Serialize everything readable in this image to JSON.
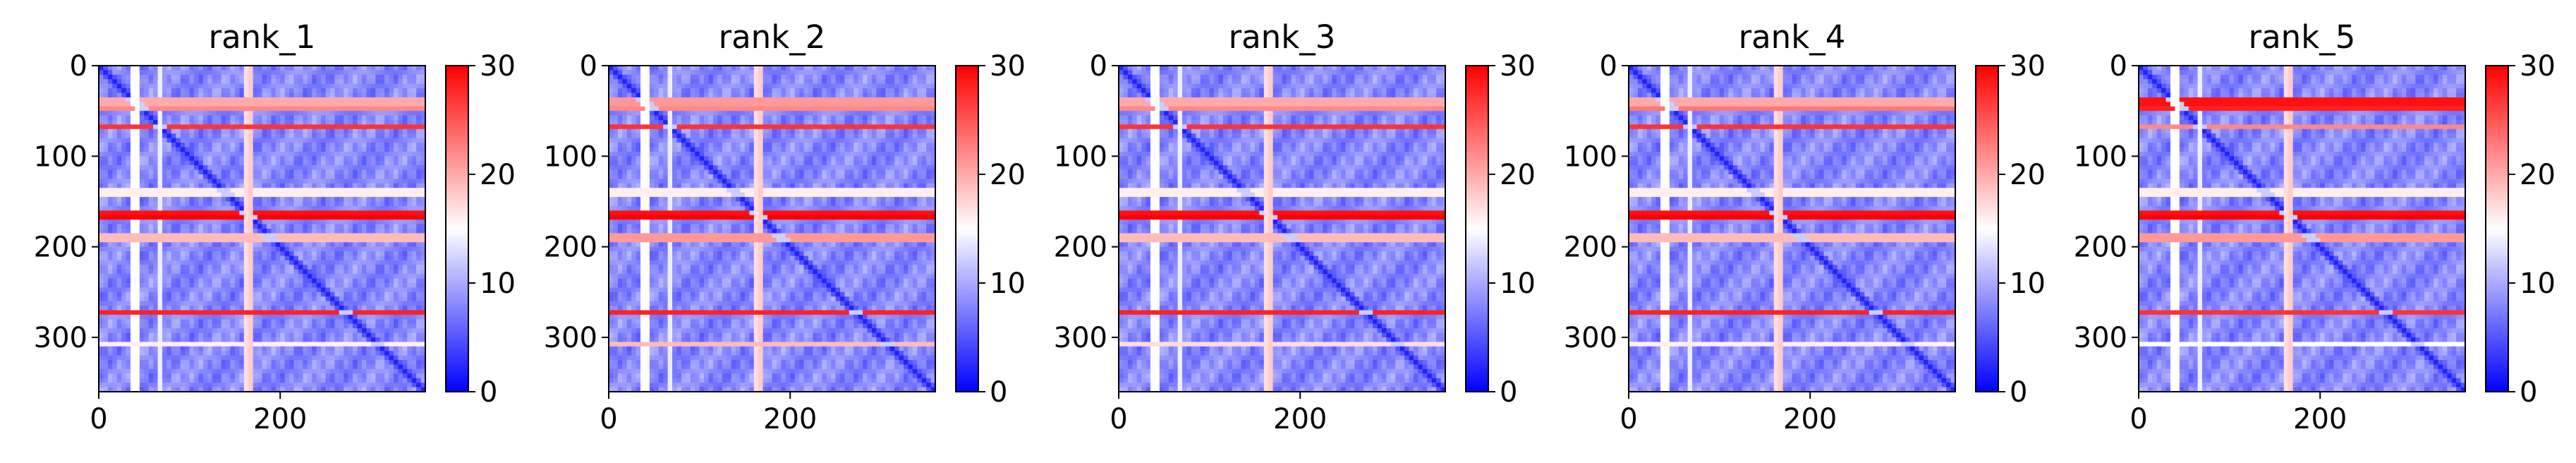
{
  "chart_data": [
    {
      "type": "heatmap",
      "title": "rank_1",
      "xlim": [
        0,
        360
      ],
      "ylim": [
        0,
        360
      ],
      "xticks": [
        0,
        200
      ],
      "yticks": [
        0,
        100,
        200,
        300
      ],
      "colorbar": {
        "cmap": "bwr",
        "min": 0,
        "max": 30,
        "ticks": [
          0,
          10,
          20,
          30
        ]
      },
      "features": {
        "base_value": 8,
        "diagonal_value": 2,
        "bright_rows": [
          {
            "y": 40,
            "value": 20
          },
          {
            "y": 47,
            "value": 22
          },
          {
            "y": 66,
            "value": 27
          },
          {
            "y": 140,
            "value": 16
          },
          {
            "y": 162,
            "value": 29
          },
          {
            "y": 168,
            "value": 30
          },
          {
            "y": 190,
            "value": 19
          },
          {
            "y": 274,
            "value": 28
          },
          {
            "y": 306,
            "value": 16
          }
        ],
        "bright_cols": [
          {
            "x": 40,
            "value": 15
          },
          {
            "x": 66,
            "value": 14
          },
          {
            "x": 163,
            "value": 17
          },
          {
            "x": 168,
            "value": 18
          }
        ]
      }
    },
    {
      "type": "heatmap",
      "title": "rank_2",
      "xlim": [
        0,
        360
      ],
      "ylim": [
        0,
        360
      ],
      "xticks": [
        0,
        200
      ],
      "yticks": [
        0,
        100,
        200,
        300
      ],
      "colorbar": {
        "cmap": "bwr",
        "min": 0,
        "max": 30,
        "ticks": [
          0,
          10,
          20,
          30
        ]
      },
      "features": {
        "base_value": 8,
        "diagonal_value": 2,
        "bright_rows": [
          {
            "y": 40,
            "value": 21
          },
          {
            "y": 47,
            "value": 22
          },
          {
            "y": 66,
            "value": 27
          },
          {
            "y": 140,
            "value": 16
          },
          {
            "y": 162,
            "value": 29
          },
          {
            "y": 168,
            "value": 30
          },
          {
            "y": 190,
            "value": 21
          },
          {
            "y": 274,
            "value": 28
          },
          {
            "y": 306,
            "value": 19
          }
        ],
        "bright_cols": [
          {
            "x": 40,
            "value": 15
          },
          {
            "x": 66,
            "value": 14
          },
          {
            "x": 163,
            "value": 17
          },
          {
            "x": 168,
            "value": 18
          }
        ]
      }
    },
    {
      "type": "heatmap",
      "title": "rank_3",
      "xlim": [
        0,
        360
      ],
      "ylim": [
        0,
        360
      ],
      "xticks": [
        0,
        200
      ],
      "yticks": [
        0,
        100,
        200,
        300
      ],
      "colorbar": {
        "cmap": "bwr",
        "min": 0,
        "max": 30,
        "ticks": [
          0,
          10,
          20,
          30
        ]
      },
      "features": {
        "base_value": 8,
        "diagonal_value": 2,
        "bright_rows": [
          {
            "y": 40,
            "value": 20
          },
          {
            "y": 47,
            "value": 22
          },
          {
            "y": 66,
            "value": 27
          },
          {
            "y": 140,
            "value": 16
          },
          {
            "y": 162,
            "value": 29
          },
          {
            "y": 168,
            "value": 30
          },
          {
            "y": 190,
            "value": 19
          },
          {
            "y": 274,
            "value": 28
          },
          {
            "y": 306,
            "value": 17
          }
        ],
        "bright_cols": [
          {
            "x": 40,
            "value": 15
          },
          {
            "x": 66,
            "value": 14
          },
          {
            "x": 163,
            "value": 17
          },
          {
            "x": 168,
            "value": 18
          }
        ]
      }
    },
    {
      "type": "heatmap",
      "title": "rank_4",
      "xlim": [
        0,
        360
      ],
      "ylim": [
        0,
        360
      ],
      "xticks": [
        0,
        200
      ],
      "yticks": [
        0,
        100,
        200,
        300
      ],
      "colorbar": {
        "cmap": "bwr",
        "min": 0,
        "max": 30,
        "ticks": [
          0,
          10,
          20,
          30
        ]
      },
      "features": {
        "base_value": 8,
        "diagonal_value": 2,
        "bright_rows": [
          {
            "y": 40,
            "value": 20
          },
          {
            "y": 47,
            "value": 23
          },
          {
            "y": 66,
            "value": 27
          },
          {
            "y": 140,
            "value": 16
          },
          {
            "y": 162,
            "value": 29
          },
          {
            "y": 168,
            "value": 30
          },
          {
            "y": 190,
            "value": 19
          },
          {
            "y": 274,
            "value": 28
          },
          {
            "y": 306,
            "value": 16
          }
        ],
        "bright_cols": [
          {
            "x": 40,
            "value": 15
          },
          {
            "x": 66,
            "value": 14
          },
          {
            "x": 163,
            "value": 17
          },
          {
            "x": 168,
            "value": 18
          }
        ]
      }
    },
    {
      "type": "heatmap",
      "title": "rank_5",
      "xlim": [
        0,
        360
      ],
      "ylim": [
        0,
        360
      ],
      "xticks": [
        0,
        200
      ],
      "yticks": [
        0,
        100,
        200,
        300
      ],
      "colorbar": {
        "cmap": "bwr",
        "min": 0,
        "max": 30,
        "ticks": [
          0,
          10,
          20,
          30
        ]
      },
      "features": {
        "base_value": 8,
        "diagonal_value": 2,
        "bright_rows": [
          {
            "y": 40,
            "value": 29
          },
          {
            "y": 47,
            "value": 28
          },
          {
            "y": 66,
            "value": 22
          },
          {
            "y": 140,
            "value": 16
          },
          {
            "y": 162,
            "value": 29
          },
          {
            "y": 168,
            "value": 30
          },
          {
            "y": 190,
            "value": 21
          },
          {
            "y": 274,
            "value": 27
          },
          {
            "y": 306,
            "value": 15
          }
        ],
        "bright_cols": [
          {
            "x": 40,
            "value": 15
          },
          {
            "x": 66,
            "value": 14
          },
          {
            "x": 163,
            "value": 17
          },
          {
            "x": 168,
            "value": 18
          }
        ]
      }
    }
  ],
  "colors": {
    "low": "#0000ff",
    "mid": "#ffffff",
    "high": "#ff0000",
    "axis": "#000000"
  }
}
